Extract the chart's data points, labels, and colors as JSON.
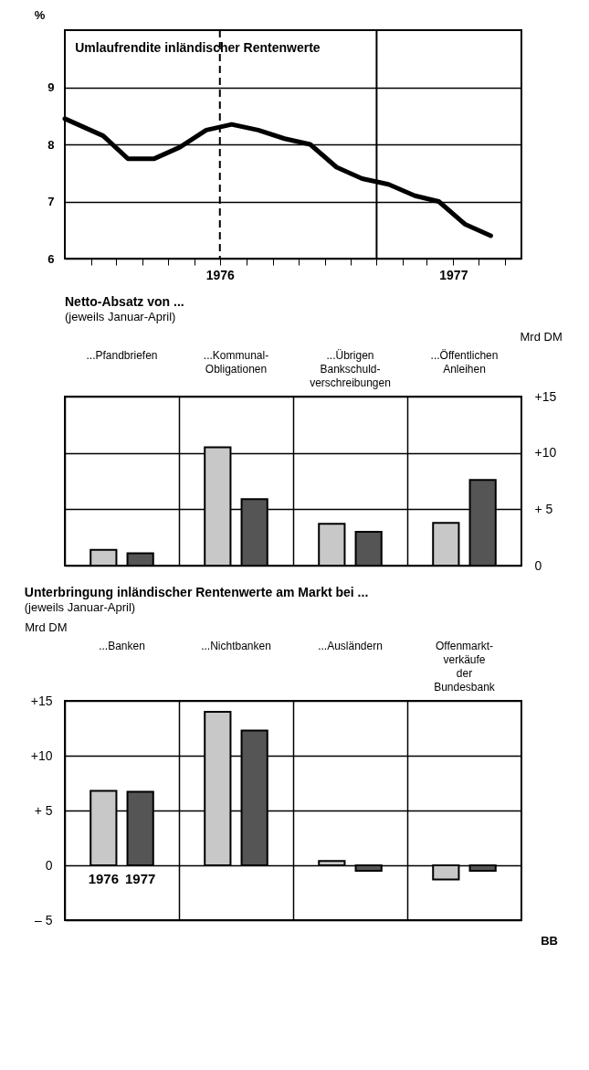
{
  "chart_data": [
    {
      "type": "line",
      "title": "Umlaufrendite inländischer Rentenwerte",
      "ylabel": "%",
      "x": [
        "1976-01-01",
        "1976-02-15",
        "1976-03-15",
        "1976-04-15",
        "1976-05-15",
        "1976-06-15",
        "1976-07-15",
        "1976-08-15",
        "1976-09-15",
        "1976-10-15",
        "1976-11-15",
        "1976-12-15",
        "1977-01-15",
        "1977-02-15",
        "1977-03-15",
        "1977-04-15",
        "1977-05-15"
      ],
      "series": [
        {
          "color": "#000000",
          "values": [
            8.45,
            8.15,
            7.75,
            7.75,
            7.95,
            8.25,
            8.35,
            8.25,
            8.1,
            8.0,
            7.6,
            7.4,
            7.3,
            7.1,
            7.0,
            6.6,
            6.4
          ]
        }
      ],
      "xlim": [
        "1976-01-01",
        "1977-06-20"
      ],
      "xticks": [
        {
          "value": "1976-02-01",
          "label": null
        },
        {
          "value": "1976-03-01",
          "label": null
        },
        {
          "value": "1976-04-01",
          "label": null
        },
        {
          "value": "1976-05-01",
          "label": null
        },
        {
          "value": "1976-06-01",
          "label": null
        },
        {
          "value": "1976-07-01",
          "label": "1976"
        },
        {
          "value": "1976-08-01",
          "label": null
        },
        {
          "value": "1976-09-01",
          "label": null
        },
        {
          "value": "1976-10-01",
          "label": null
        },
        {
          "value": "1976-11-01",
          "label": null
        },
        {
          "value": "1976-12-01",
          "label": null
        },
        {
          "value": "1977-01-01",
          "label": null
        },
        {
          "value": "1977-02-01",
          "label": null
        },
        {
          "value": "1977-03-01",
          "label": null
        },
        {
          "value": "1977-04-01",
          "label": "1977"
        },
        {
          "value": "1977-05-01",
          "label": null
        },
        {
          "value": "1977-06-01",
          "label": null
        }
      ],
      "ylim": [
        6,
        10
      ],
      "yticks": [
        6,
        7,
        8,
        9
      ],
      "grid": "y",
      "ref_lines": [
        {
          "axis": "x",
          "value": "1976-07-01",
          "line_style": "dashed"
        },
        {
          "axis": "x",
          "value": "1977-01-01"
        }
      ]
    },
    {
      "type": "bar",
      "title": "Netto-Absatz von ...",
      "subtitle": "(jeweils Januar-April)",
      "y2label": "Mrd DM",
      "categories": [
        "...Pfandbriefen",
        "...Kommunal-Obligationen",
        "...Übrigen Bankschuld-verschreibungen",
        "...Öffentlichen Anleihen"
      ],
      "series": [
        {
          "color": "#c8c8c8",
          "axis": "y2",
          "values": [
            1.4,
            10.5,
            3.7,
            3.8
          ]
        },
        {
          "color": "#555555",
          "axis": "y2",
          "values": [
            1.1,
            5.9,
            3.0,
            7.6
          ]
        }
      ],
      "y2lim": [
        0,
        15
      ],
      "y2ticks": [
        0,
        {
          "value": 5,
          "label": "+ 5"
        },
        {
          "value": 10,
          "label": "+10"
        },
        {
          "value": 15,
          "label": "+15"
        }
      ],
      "grid": true
    },
    {
      "type": "bar",
      "title": "Unterbringung inländischer Rentenwerte am Markt bei ...",
      "subtitle": "(jeweils Januar-April)",
      "ylabel": "Mrd DM",
      "categories": [
        "...Banken",
        "...Nichtbanken",
        "...Ausländern",
        "Offenmarkt-verkäufe der Bundesbank"
      ],
      "series": [
        {
          "name": "1976",
          "color": "#c8c8c8",
          "values": [
            6.8,
            14.0,
            0.4,
            -1.3
          ]
        },
        {
          "name": "1977",
          "color": "#555555",
          "values": [
            6.7,
            12.3,
            -0.5,
            -0.5
          ]
        }
      ],
      "ylim": [
        -5,
        15
      ],
      "yticks": [
        {
          "value": -5,
          "label": "– 5"
        },
        0,
        {
          "value": 5,
          "label": "+ 5"
        },
        {
          "value": 10,
          "label": "+10"
        },
        {
          "value": 15,
          "label": "+15"
        }
      ],
      "grid": true,
      "annotations": [
        "BB"
      ]
    }
  ]
}
